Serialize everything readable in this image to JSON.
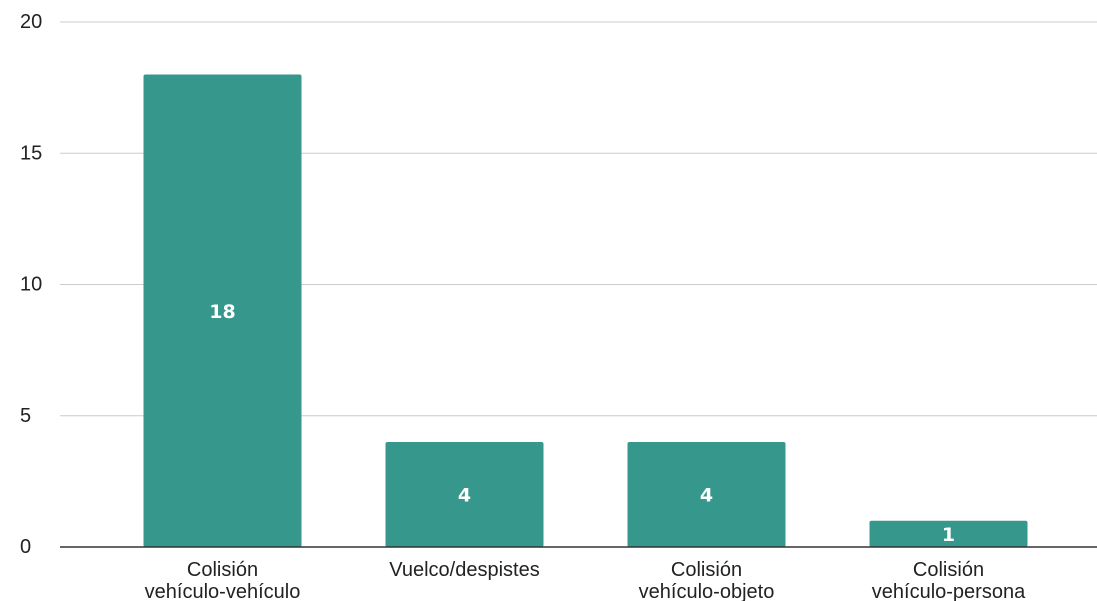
{
  "chart_data": {
    "type": "bar",
    "categories": [
      [
        "Colisión",
        "vehículo-vehículo"
      ],
      [
        "Vuelco/despistes"
      ],
      [
        "Colisión",
        "vehículo-objeto"
      ],
      [
        "Colisión",
        "vehículo-persona"
      ]
    ],
    "values": [
      18,
      4,
      4,
      1
    ],
    "data_labels": [
      "18",
      "4",
      "4",
      "1"
    ],
    "ylim": [
      0,
      20
    ],
    "yticks": [
      0,
      5,
      10,
      15,
      20
    ],
    "ytick_labels": [
      "0",
      "5",
      "10",
      "15",
      "20"
    ],
    "grid": true,
    "legend": "none",
    "colors": {
      "bar": "#36978c",
      "grid": "#cccccc",
      "baseline": "#333333"
    }
  }
}
